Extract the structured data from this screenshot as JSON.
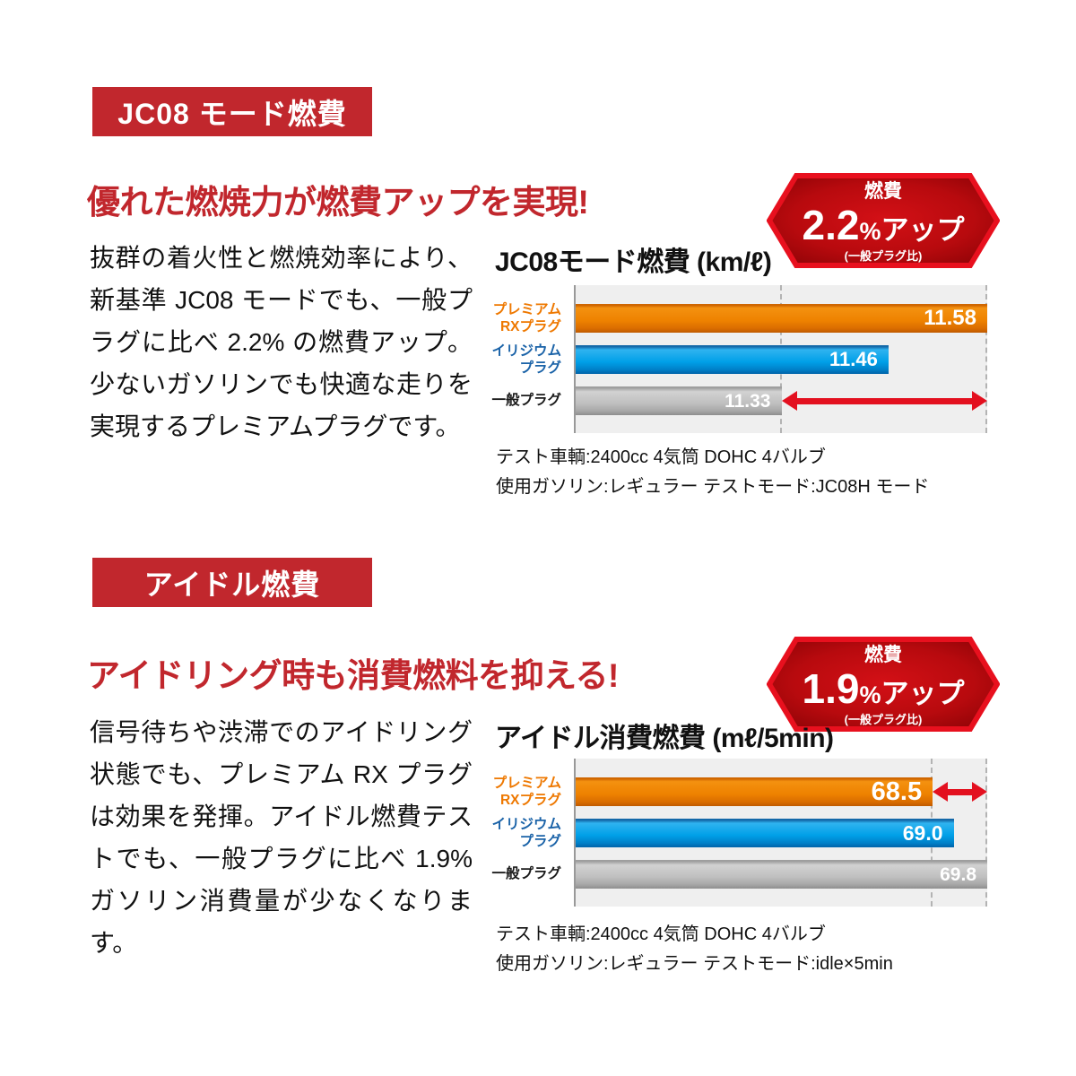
{
  "colors": {
    "section_red": "#c1272d",
    "badge_border_red": "#e8101e",
    "badge_fill_center": "#d31016",
    "badge_fill_edge": "#860205",
    "arrow_red": "#e3101f",
    "bar_orange": "#ee8200",
    "bar_blue": "#00a0e8",
    "bar_gray": "#c0c0c0",
    "label_orange": "#ee7800",
    "label_blue": "#1b63a8",
    "plot_background": "#efefef",
    "value_text": "#ffffff"
  },
  "sections": [
    {
      "tag_label": "JC08 モード燃費",
      "headline": "優れた燃焼力が燃費アップを実現!",
      "badge": {
        "top_label": "燃費",
        "number": "2.2",
        "percent_sign": "%",
        "suffix": "アップ",
        "note": "(一般プラグ比)"
      },
      "body": "抜群の着火性と燃焼効率により、新基準 JC08 モードでも、一般プラグに比べ 2.2% の燃費アップ。少ないガソリンでも快適な走りを実現するプレミアムプラグです。",
      "notes": [
        "テスト車輌:2400cc 4気筒 DOHC 4バルブ",
        "使用ガソリン:レギュラー テストモード:JC08H モード"
      ]
    },
    {
      "tag_label": "アイドル燃費",
      "headline": "アイドリング時も消費燃料を抑える!",
      "badge": {
        "top_label": "燃費",
        "number": "1.9",
        "percent_sign": "%",
        "suffix": "アップ",
        "note": "(一般プラグ比)"
      },
      "body": "信号待ちや渋滞でのアイドリング状態でも、プレミアム RX プラグは効果を発揮。アイドル燃費テストでも、一般プラグに比べ 1.9% ガソリン消費量が少なくなります。",
      "notes": [
        "テスト車輌:2400cc 4気筒 DOHC 4バルブ",
        "使用ガソリン:レギュラー テストモード:idle×5min"
      ]
    }
  ],
  "chart_data": [
    {
      "type": "bar",
      "orientation": "horizontal",
      "title": "JC08モード燃費 (km/ℓ)",
      "unit": "km/ℓ",
      "categories": [
        [
          "プレミアム",
          "RXプラグ"
        ],
        [
          "イリジウム",
          "プラグ"
        ],
        [
          "一般プラグ"
        ]
      ],
      "values": [
        11.58,
        11.46,
        11.33
      ],
      "value_labels": [
        "11.58",
        "11.46",
        "11.33"
      ],
      "series_colors": [
        "orange",
        "blue",
        "gray"
      ],
      "axis_min": 11.08,
      "axis_max": 11.58,
      "grid": false,
      "dashed_lines_at": [
        11.33,
        11.58
      ],
      "diff_arrow": {
        "row_index": 2,
        "from_value": 11.33,
        "to_value": 11.58
      }
    },
    {
      "type": "bar",
      "orientation": "horizontal",
      "title": "アイドル消費燃費 (mℓ/5min)",
      "unit": "mℓ/5min",
      "categories": [
        [
          "プレミアム",
          "RXプラグ"
        ],
        [
          "イリジウム",
          "プラグ"
        ],
        [
          "一般プラグ"
        ]
      ],
      "values": [
        68.5,
        69.0,
        69.8
      ],
      "value_labels": [
        "68.5",
        "69.0",
        "69.8"
      ],
      "series_colors": [
        "orange",
        "blue",
        "gray"
      ],
      "axis_min": 60.0,
      "axis_max": 69.8,
      "grid": false,
      "dashed_lines_at": [
        68.5,
        69.8
      ],
      "diff_arrow": {
        "row_index": 0,
        "from_value": 68.5,
        "to_value": 69.8
      }
    }
  ]
}
